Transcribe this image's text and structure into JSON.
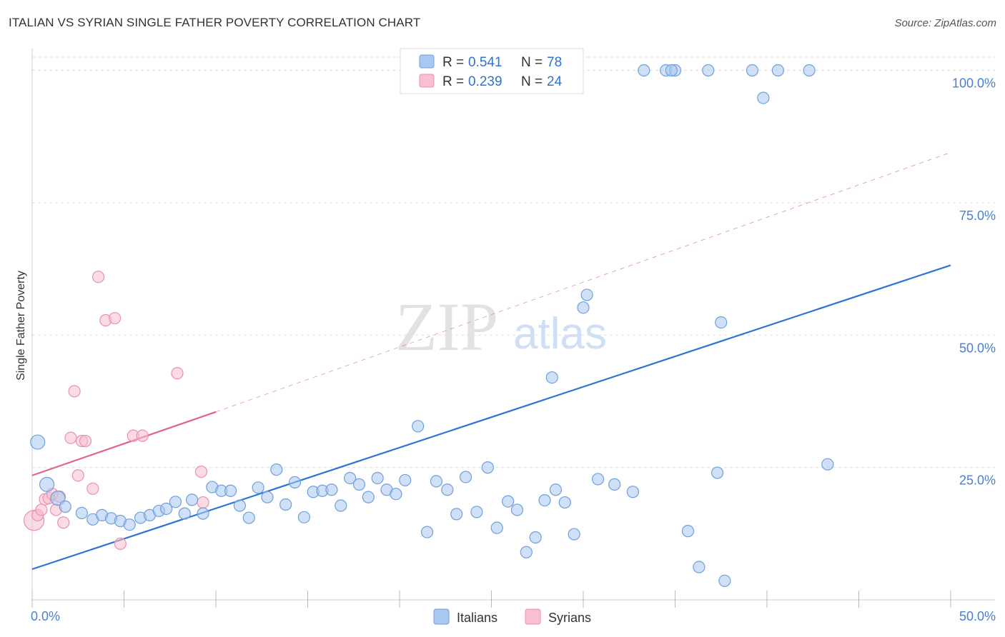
{
  "header": {
    "title": "ITALIAN VS SYRIAN SINGLE FATHER POVERTY CORRELATION CHART",
    "source": "Source: ZipAtlas.com"
  },
  "watermark": {
    "zip": "ZIP",
    "atlas": "atlas"
  },
  "colors": {
    "italians_fill": "#a9c8f0",
    "italians_stroke": "#6f9fdc",
    "italians_line": "#2f73d2",
    "syrians_fill": "#f7bfd0",
    "syrians_stroke": "#ec8fae",
    "syrians_line": "#e0638d",
    "grid": "#dddddd",
    "tick_text": "#4a7fd0"
  },
  "chart_data": {
    "type": "scatter",
    "title": "ITALIAN VS SYRIAN SINGLE FATHER POVERTY CORRELATION CHART",
    "xlabel": "",
    "ylabel": "Single Father Poverty",
    "xlim": [
      0,
      50
    ],
    "ylim": [
      0,
      102.5
    ],
    "x_tick_labels": [
      "0.0%",
      "50.0%"
    ],
    "y_ticks": [
      25,
      50,
      75,
      100
    ],
    "y_tick_labels": [
      "25.0%",
      "50.0%",
      "75.0%",
      "100.0%"
    ],
    "grid": true,
    "legend": {
      "position": "top-center",
      "entries": [
        {
          "r_label": "R =",
          "r_value": "0.541",
          "n_label": "N =",
          "n_value": "78"
        },
        {
          "r_label": "R =",
          "r_value": "0.239",
          "n_label": "N =",
          "n_value": "24"
        }
      ]
    },
    "series": [
      {
        "name": "Italians",
        "r": 0.541,
        "n": 78,
        "trendline": {
          "x": [
            0,
            50
          ],
          "y": [
            5.8,
            63.2
          ],
          "style": "solid"
        },
        "points": [
          [
            0.3,
            29.8
          ],
          [
            0.8,
            21.8
          ],
          [
            1.4,
            19.2
          ],
          [
            1.8,
            17.6
          ],
          [
            2.7,
            16.4
          ],
          [
            3.3,
            15.2
          ],
          [
            3.8,
            16.0
          ],
          [
            4.3,
            15.4
          ],
          [
            4.8,
            14.9
          ],
          [
            5.3,
            14.2
          ],
          [
            5.9,
            15.5
          ],
          [
            6.4,
            16.0
          ],
          [
            6.9,
            16.8
          ],
          [
            7.3,
            17.2
          ],
          [
            7.8,
            18.5
          ],
          [
            8.3,
            16.3
          ],
          [
            8.7,
            18.9
          ],
          [
            9.3,
            16.3
          ],
          [
            9.8,
            21.3
          ],
          [
            10.3,
            20.6
          ],
          [
            10.8,
            20.6
          ],
          [
            11.3,
            17.8
          ],
          [
            11.8,
            15.5
          ],
          [
            12.3,
            21.2
          ],
          [
            12.8,
            19.4
          ],
          [
            13.3,
            24.6
          ],
          [
            13.8,
            18.0
          ],
          [
            14.3,
            22.2
          ],
          [
            14.8,
            15.6
          ],
          [
            15.3,
            20.4
          ],
          [
            15.8,
            20.6
          ],
          [
            16.3,
            20.8
          ],
          [
            16.8,
            17.8
          ],
          [
            17.3,
            23.0
          ],
          [
            17.8,
            21.8
          ],
          [
            18.3,
            19.4
          ],
          [
            18.8,
            23.0
          ],
          [
            19.3,
            20.8
          ],
          [
            19.8,
            20.0
          ],
          [
            20.3,
            22.6
          ],
          [
            21.0,
            32.8
          ],
          [
            21.5,
            12.8
          ],
          [
            22.0,
            22.4
          ],
          [
            22.6,
            20.8
          ],
          [
            23.1,
            16.2
          ],
          [
            23.6,
            23.2
          ],
          [
            24.2,
            16.6
          ],
          [
            24.8,
            25.0
          ],
          [
            25.3,
            13.6
          ],
          [
            25.9,
            18.6
          ],
          [
            26.4,
            17.0
          ],
          [
            26.9,
            9.0
          ],
          [
            27.4,
            11.8
          ],
          [
            27.9,
            18.8
          ],
          [
            28.5,
            20.8
          ],
          [
            29.0,
            18.4
          ],
          [
            29.5,
            12.4
          ],
          [
            28.3,
            42.0
          ],
          [
            30.0,
            55.2
          ],
          [
            30.2,
            57.6
          ],
          [
            30.8,
            22.8
          ],
          [
            31.7,
            21.8
          ],
          [
            32.7,
            20.4
          ],
          [
            33.3,
            100.0
          ],
          [
            34.5,
            100.0
          ],
          [
            35.0,
            100.0
          ],
          [
            35.7,
            13.0
          ],
          [
            36.3,
            6.2
          ],
          [
            37.3,
            24.0
          ],
          [
            37.5,
            52.4
          ],
          [
            37.7,
            3.6
          ],
          [
            39.2,
            100.0
          ],
          [
            39.8,
            94.8
          ],
          [
            40.6,
            100.0
          ],
          [
            42.3,
            100.0
          ],
          [
            43.3,
            25.6
          ],
          [
            36.8,
            100.0
          ],
          [
            34.8,
            100.0
          ]
        ]
      },
      {
        "name": "Syrians",
        "r": 0.239,
        "n": 24,
        "trendline": {
          "x": [
            0,
            10
          ],
          "y": [
            23.5,
            35.5
          ],
          "style": "solid",
          "extended": {
            "x": [
              10,
              50
            ],
            "y": [
              35.5,
              84.5
            ],
            "style": "dashed"
          }
        },
        "points": [
          [
            0.1,
            15.0
          ],
          [
            0.3,
            16.0
          ],
          [
            0.5,
            17.0
          ],
          [
            0.7,
            19.0
          ],
          [
            0.9,
            19.2
          ],
          [
            1.1,
            20.0
          ],
          [
            1.3,
            17.0
          ],
          [
            1.5,
            19.5
          ],
          [
            1.7,
            14.6
          ],
          [
            2.1,
            30.6
          ],
          [
            2.3,
            39.4
          ],
          [
            2.5,
            23.5
          ],
          [
            2.7,
            30.0
          ],
          [
            2.9,
            30.0
          ],
          [
            3.3,
            21.0
          ],
          [
            3.6,
            61.0
          ],
          [
            4.0,
            52.8
          ],
          [
            4.5,
            53.2
          ],
          [
            4.8,
            10.6
          ],
          [
            5.5,
            31.0
          ],
          [
            6.0,
            31.0
          ],
          [
            7.9,
            42.8
          ],
          [
            9.2,
            24.2
          ],
          [
            9.3,
            18.4
          ]
        ]
      }
    ]
  },
  "bottom_legend": {
    "italians": "Italians",
    "syrians": "Syrians"
  }
}
